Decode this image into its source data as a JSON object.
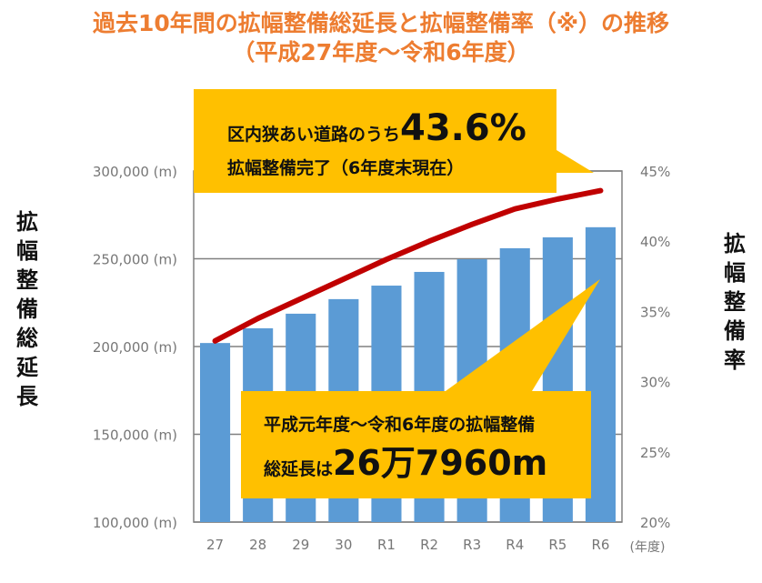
{
  "title": "過去10年間の拡幅整備総延長と拡幅整備率（※）の推移",
  "subtitle": "（平成27年度～令和6年度）",
  "colors": {
    "title": "#ED7D31",
    "bar": "#5B9BD5",
    "line": "#C00000",
    "callout": "#FFC000",
    "grid": "#808080"
  },
  "chart_data": {
    "type": "bar+line",
    "title": "過去10年間の拡幅整備総延長と拡幅整備率（※）の推移",
    "subtitle": "（平成27年度～令和6年度）",
    "categories": [
      "27",
      "28",
      "29",
      "30",
      "R1",
      "R2",
      "R3",
      "R4",
      "R5",
      "R6"
    ],
    "xunit": "(年度)",
    "ylabel": "拡幅整備総延長",
    "y2label": "拡幅整備率",
    "ylim": [
      100000,
      300000
    ],
    "yticks": [
      "100,000 (m)",
      "150,000 (m)",
      "200,000 (m)",
      "250,000 (m)",
      "300,000 (m)"
    ],
    "y2lim": [
      20,
      45
    ],
    "y2ticks": [
      "20%",
      "25%",
      "30%",
      "35%",
      "40%",
      "45%"
    ],
    "grid": true,
    "series": [
      {
        "type": "bar",
        "axis": "left",
        "values": [
          202000,
          210400,
          218700,
          227000,
          234700,
          242500,
          249700,
          256000,
          262200,
          267960
        ]
      },
      {
        "type": "line",
        "axis": "right",
        "values": [
          32.9,
          34.5,
          35.9,
          37.3,
          38.7,
          40.0,
          41.2,
          42.3,
          43.0,
          43.6
        ]
      }
    ]
  },
  "callout_top": {
    "line1_prefix": "区内狭あい道路のうち",
    "line1_value": "43.6%",
    "line2": "拡幅整備完了（6年度末現在）"
  },
  "callout_bottom": {
    "line1": "平成元年度～令和6年度の拡幅整備",
    "line2_prefix": "総延長は",
    "line2_value": "26万7960m"
  }
}
